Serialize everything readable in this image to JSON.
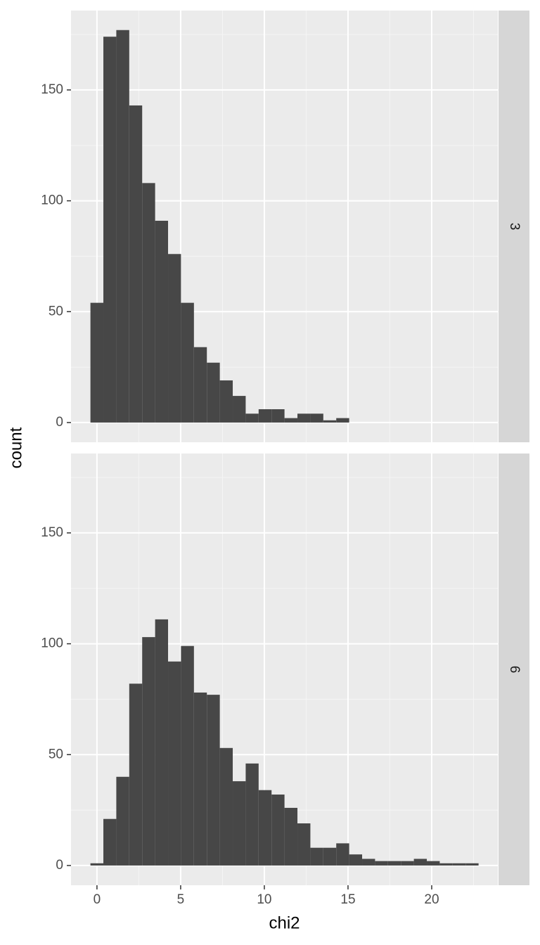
{
  "chart_data": [
    {
      "type": "histogram",
      "facet": "3",
      "ylabel": "count",
      "bins": [
        -0.39,
        0.383,
        1.156,
        1.929,
        2.702,
        3.475,
        4.248,
        5.021,
        5.794,
        6.567,
        7.34,
        8.113,
        8.886,
        9.659,
        10.432,
        11.205,
        11.978,
        12.751,
        13.524,
        14.297,
        15.07,
        15.843,
        16.616,
        17.389,
        18.162,
        18.935,
        19.708,
        20.481,
        21.254,
        22.027,
        22.8
      ],
      "values": [
        54,
        174,
        177,
        143,
        108,
        91,
        76,
        54,
        34,
        27,
        19,
        12,
        4,
        6,
        6,
        2,
        4,
        4,
        1,
        2,
        0,
        0,
        0,
        0,
        0,
        0,
        0,
        0,
        0,
        0
      ],
      "color": "#474747",
      "xlim": [
        -1.55,
        23.95
      ],
      "xticks": [
        0,
        5,
        10,
        15,
        20
      ],
      "ylim": [
        -8.9,
        185.8
      ],
      "yticks": [
        0,
        50,
        100,
        150
      ],
      "grid": true
    },
    {
      "type": "histogram",
      "facet": "6",
      "xlabel": "chi2",
      "bins": [
        -0.39,
        0.383,
        1.156,
        1.929,
        2.702,
        3.475,
        4.248,
        5.021,
        5.794,
        6.567,
        7.34,
        8.113,
        8.886,
        9.659,
        10.432,
        11.205,
        11.978,
        12.751,
        13.524,
        14.297,
        15.07,
        15.843,
        16.616,
        17.389,
        18.162,
        18.935,
        19.708,
        20.481,
        21.254,
        22.027,
        22.8
      ],
      "values": [
        1,
        21,
        40,
        82,
        103,
        111,
        92,
        99,
        78,
        77,
        53,
        38,
        46,
        34,
        32,
        26,
        19,
        8,
        8,
        10,
        5,
        3,
        2,
        2,
        2,
        3,
        2,
        1,
        1,
        1
      ],
      "color": "#474747",
      "xlim": [
        -1.55,
        23.95
      ],
      "xticks": [
        0,
        5,
        10,
        15,
        20
      ],
      "ylim": [
        -8.9,
        185.8
      ],
      "yticks": [
        0,
        50,
        100,
        150
      ],
      "grid": true
    }
  ]
}
